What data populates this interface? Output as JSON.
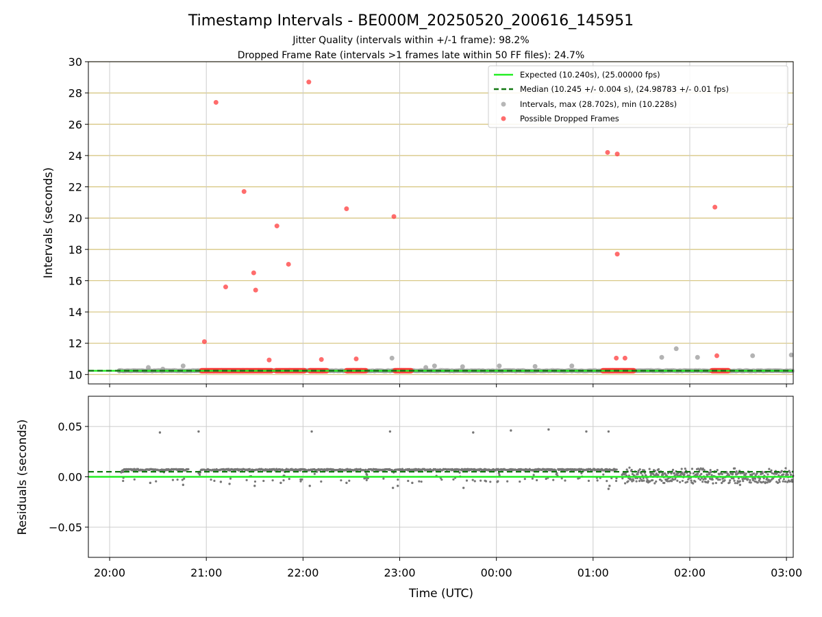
{
  "chart_data": [
    {
      "type": "scatter",
      "title": "Timestamp Intervals - BE000M_20250520_200616_145951",
      "subtitle_lines": [
        "Jitter Quality (intervals within +/-1 frame): 98.2%",
        "Dropped Frame Rate (intervals >1 frames late within 50 FF files): 24.7%"
      ],
      "ylabel": "Intervals (seconds)",
      "ylim": [
        9.4,
        30
      ],
      "yticks": [
        10,
        12,
        14,
        16,
        18,
        20,
        22,
        24,
        26,
        28,
        30
      ],
      "ytick_labels": [
        "10",
        "12",
        "14",
        "16",
        "18",
        "20",
        "22",
        "24",
        "26",
        "28",
        "30"
      ],
      "xlim_hours": [
        19.78,
        27.07
      ],
      "xticks_hours": [
        20,
        21,
        22,
        23,
        24,
        25,
        26,
        27
      ],
      "grid": "both",
      "legend_position": "top-right",
      "expected_interval": 10.24,
      "median_interval": 10.245,
      "legend": [
        "Expected (10.240s), (25.00000 fps)",
        "Median (10.245 +/- 0.004 s), (24.98783 +/- 0.01 fps)",
        "Intervals, max (28.702s), min (10.228s)",
        "Possible Dropped Frames"
      ],
      "colors": {
        "expected": "#22ee22",
        "median": "#117711",
        "intervals": "#999999",
        "dropped": "#ff3b3b",
        "hgrid": "#d4c27a",
        "vgrid": "#cccccc"
      },
      "dropped_frames": [
        [
          20.98,
          12.1
        ],
        [
          21.1,
          27.4
        ],
        [
          21.2,
          15.6
        ],
        [
          21.39,
          21.7
        ],
        [
          21.49,
          16.5
        ],
        [
          21.51,
          15.4
        ],
        [
          21.65,
          10.93
        ],
        [
          21.73,
          19.5
        ],
        [
          21.85,
          17.05
        ],
        [
          22.06,
          28.7
        ],
        [
          22.19,
          10.96
        ],
        [
          22.45,
          20.6
        ],
        [
          22.55,
          11.0
        ],
        [
          22.94,
          20.1
        ],
        [
          25.15,
          24.2
        ],
        [
          25.25,
          24.1
        ],
        [
          25.24,
          11.05
        ],
        [
          25.25,
          17.7
        ],
        [
          25.33,
          11.05
        ],
        [
          26.26,
          20.7
        ],
        [
          26.28,
          11.2
        ]
      ],
      "dropped_bands": [
        [
          20.95,
          21.38
        ],
        [
          21.38,
          21.68
        ],
        [
          21.72,
          22.02
        ],
        [
          22.07,
          22.25
        ],
        [
          22.45,
          22.65
        ],
        [
          22.95,
          23.12
        ],
        [
          25.1,
          25.42
        ],
        [
          26.23,
          26.4
        ]
      ],
      "interval_outliers": [
        [
          20.1,
          10.25
        ],
        [
          20.4,
          10.45
        ],
        [
          20.55,
          10.35
        ],
        [
          20.76,
          10.55
        ],
        [
          22.92,
          11.05
        ],
        [
          23.27,
          10.45
        ],
        [
          23.36,
          10.55
        ],
        [
          23.65,
          10.5
        ],
        [
          24.03,
          10.55
        ],
        [
          24.4,
          10.52
        ],
        [
          24.78,
          10.55
        ],
        [
          25.71,
          11.1
        ],
        [
          25.86,
          11.65
        ],
        [
          26.08,
          11.1
        ],
        [
          26.65,
          11.2
        ],
        [
          27.05,
          11.25
        ]
      ],
      "interval_band": [
        20.1,
        27.07
      ]
    },
    {
      "type": "scatter",
      "xlabel": "Time (UTC)",
      "ylabel": "Residuals (seconds)",
      "ylim": [
        -0.08,
        0.08
      ],
      "yticks": [
        -0.05,
        0.0,
        0.05
      ],
      "ytick_labels": [
        "−0.05",
        "0.00",
        "0.05"
      ],
      "xlim_hours": [
        19.78,
        27.07
      ],
      "xticks_hours": [
        20,
        21,
        22,
        23,
        24,
        25,
        26,
        27
      ],
      "xtick_labels": [
        "20:00",
        "21:00",
        "22:00",
        "23:00",
        "00:00",
        "01:00",
        "02:00",
        "03:00"
      ],
      "grid": "both",
      "expected_residual": 0.0,
      "median_residual": 0.005,
      "colors": {
        "expected": "#22ee22",
        "median": "#117711",
        "points": "#777777",
        "grid": "#cccccc"
      },
      "segment_level": 0.007,
      "segments": [
        [
          20.12,
          20.55
        ],
        [
          20.55,
          20.82
        ],
        [
          20.92,
          21.45
        ],
        [
          21.45,
          21.8
        ],
        [
          21.8,
          22.12
        ],
        [
          22.12,
          22.65
        ],
        [
          22.65,
          22.92
        ],
        [
          22.92,
          23.38
        ],
        [
          23.38,
          23.62
        ],
        [
          23.62,
          23.85
        ],
        [
          23.85,
          24.02
        ],
        [
          24.02,
          24.38
        ],
        [
          24.38,
          24.62
        ],
        [
          24.62,
          24.88
        ],
        [
          24.88,
          25.1
        ],
        [
          25.1,
          25.25
        ]
      ],
      "noisy_region": [
        25.3,
        27.07
      ],
      "outliers": [
        [
          20.52,
          0.044
        ],
        [
          20.92,
          0.045
        ],
        [
          22.09,
          0.045
        ],
        [
          22.9,
          0.045
        ],
        [
          23.76,
          0.044
        ],
        [
          24.15,
          0.046
        ],
        [
          24.54,
          0.047
        ],
        [
          24.93,
          0.045
        ],
        [
          25.16,
          0.045
        ],
        [
          22.07,
          -0.009
        ],
        [
          21.5,
          -0.009
        ],
        [
          22.93,
          -0.011
        ],
        [
          23.66,
          -0.011
        ],
        [
          25.16,
          -0.012
        ],
        [
          20.76,
          -0.008
        ],
        [
          20.42,
          -0.006
        ],
        [
          21.15,
          -0.005
        ],
        [
          21.24,
          -0.007
        ],
        [
          23.13,
          -0.006
        ],
        [
          24.01,
          -0.005
        ],
        [
          22.45,
          -0.006
        ],
        [
          22.98,
          -0.009
        ],
        [
          21.77,
          -0.006
        ],
        [
          25.17,
          -0.009
        ],
        [
          26.52,
          -0.008
        ]
      ]
    }
  ]
}
